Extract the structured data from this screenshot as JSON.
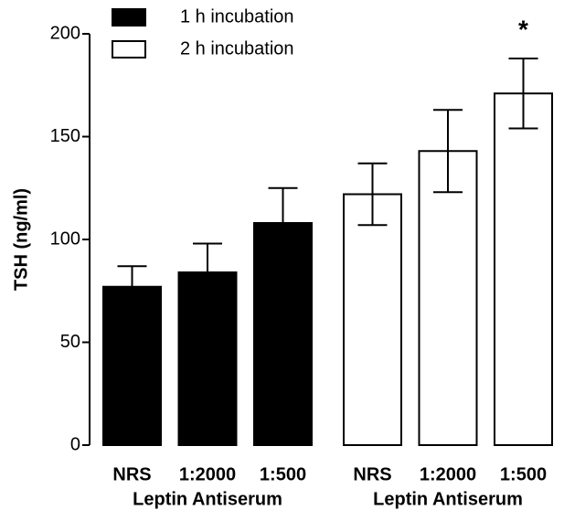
{
  "chart_data": {
    "type": "bar",
    "y_label": "TSH (ng/ml)",
    "categories": [
      "NRS",
      "1:2000",
      "1:500"
    ],
    "group_label": "Leptin Antiserum",
    "series": [
      {
        "name": "1 h incubation",
        "color": "#000000",
        "values": [
          77,
          84,
          108
        ],
        "errors": [
          10,
          14,
          17
        ]
      },
      {
        "name": "2 h incubation",
        "color": "#ffffff",
        "values": [
          122,
          143,
          171
        ],
        "errors": [
          15,
          20,
          17
        ]
      }
    ],
    "annotation": "*",
    "ylim": [
      0,
      200
    ],
    "yticks": [
      0,
      50,
      100,
      150,
      200
    ],
    "grid": false
  }
}
